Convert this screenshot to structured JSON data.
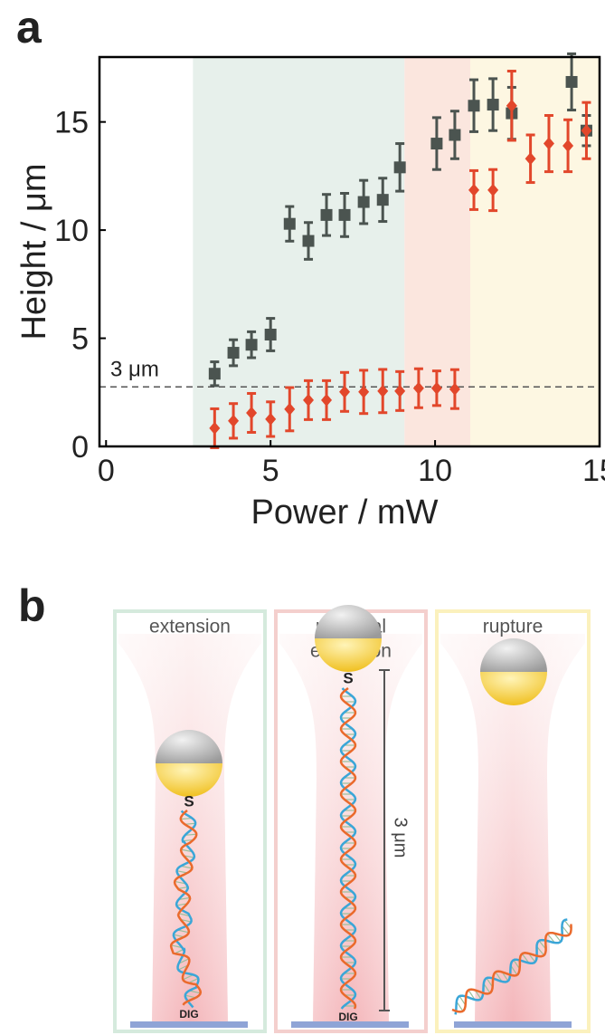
{
  "chart_data": {
    "type": "scatter",
    "panel_label": "a",
    "xlabel": "Power / mW",
    "ylabel": "Height / μm",
    "xlim": [
      -0.2,
      15
    ],
    "ylim": [
      0,
      18
    ],
    "xticks": [
      0,
      5,
      10,
      15
    ],
    "yticks": [
      0,
      5,
      10,
      15
    ],
    "regions": [
      {
        "from": 2.64,
        "to": 9.07,
        "color": "#e7f0eb"
      },
      {
        "from": 9.07,
        "to": 11.07,
        "color": "#fbe6de"
      },
      {
        "from": 11.07,
        "to": 15,
        "color": "#fdf7e2"
      }
    ],
    "reference_line": {
      "value": 2.75,
      "label": "3 μm"
    },
    "series": [
      {
        "color": "#4b5450",
        "marker": "square",
        "x": [
          3.3,
          3.87,
          4.42,
          5.0,
          5.58,
          6.15,
          6.7,
          7.25,
          7.83,
          8.41,
          8.93,
          10.05,
          10.6,
          11.18,
          11.76,
          12.33,
          14.15,
          14.6
        ],
        "values": [
          3.36,
          4.33,
          4.7,
          5.17,
          10.29,
          9.5,
          10.7,
          10.7,
          11.3,
          11.4,
          12.9,
          14.0,
          14.4,
          15.75,
          15.8,
          15.4,
          16.85,
          14.6
        ],
        "errors": [
          0.55,
          0.6,
          0.6,
          0.75,
          0.8,
          0.85,
          0.95,
          1.0,
          1.0,
          1.0,
          1.1,
          1.2,
          1.1,
          1.2,
          1.2,
          1.2,
          1.3,
          0.7
        ]
      },
      {
        "color": "#e2472b",
        "marker": "diamond",
        "x": [
          3.3,
          3.87,
          4.42,
          5.0,
          5.58,
          6.15,
          6.7,
          7.25,
          7.83,
          8.41,
          8.93,
          9.5,
          10.05,
          10.6,
          11.18,
          11.76,
          12.33,
          12.9,
          13.46,
          14.04,
          14.6
        ],
        "values": [
          0.84,
          1.18,
          1.55,
          1.26,
          1.72,
          2.14,
          2.14,
          2.52,
          2.52,
          2.56,
          2.56,
          2.69,
          2.69,
          2.65,
          11.85,
          11.85,
          15.75,
          13.3,
          14.0,
          13.9,
          14.6
        ],
        "errors": [
          0.9,
          0.8,
          0.9,
          0.8,
          1.0,
          0.9,
          0.9,
          0.9,
          1.0,
          1.0,
          0.9,
          0.9,
          0.8,
          0.9,
          0.9,
          0.95,
          1.6,
          1.1,
          1.3,
          1.2,
          1.3
        ]
      }
    ]
  },
  "diagram": {
    "panel_label": "b",
    "panels": [
      {
        "title": [
          "extension"
        ],
        "anchor": "S",
        "base": "DIG"
      },
      {
        "title": [
          "maximal",
          "extension"
        ],
        "anchor": "S",
        "base": "DIG",
        "scale": "3 μm"
      },
      {
        "title": [
          "rupture"
        ]
      }
    ]
  }
}
